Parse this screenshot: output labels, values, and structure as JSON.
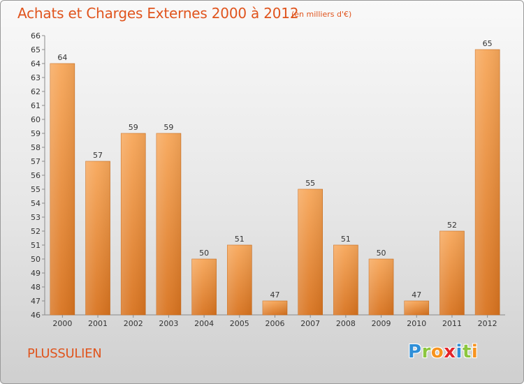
{
  "title": "Achats et Charges Externes 2000 à 2012",
  "subtitle": "(en milliers d'€)",
  "commune": "PLUSSULIEN",
  "logo": {
    "letters": [
      {
        "char": "P",
        "color": "#2f8fd8"
      },
      {
        "char": "r",
        "color": "#8cc63f"
      },
      {
        "char": "o",
        "color": "#f7931e"
      },
      {
        "char": "x",
        "color": "#e4262b"
      },
      {
        "char": "i",
        "color": "#2f8fd8"
      },
      {
        "char": "t",
        "color": "#8cc63f"
      },
      {
        "char": "i",
        "color": "#f7931e"
      }
    ]
  },
  "chart_data": {
    "type": "bar",
    "categories": [
      "2000",
      "2001",
      "2002",
      "2003",
      "2004",
      "2005",
      "2006",
      "2007",
      "2008",
      "2009",
      "2010",
      "2011",
      "2012"
    ],
    "values": [
      64,
      57,
      59,
      59,
      50,
      51,
      47,
      55,
      51,
      50,
      47,
      52,
      65
    ],
    "ylim": [
      46,
      66
    ],
    "yticks": [
      46,
      47,
      48,
      49,
      50,
      51,
      52,
      53,
      54,
      55,
      56,
      57,
      58,
      59,
      60,
      61,
      62,
      63,
      64,
      65,
      66
    ],
    "grid": false,
    "bar_color_top": "#f7a75a",
    "bar_color_bottom": "#d8731f"
  }
}
